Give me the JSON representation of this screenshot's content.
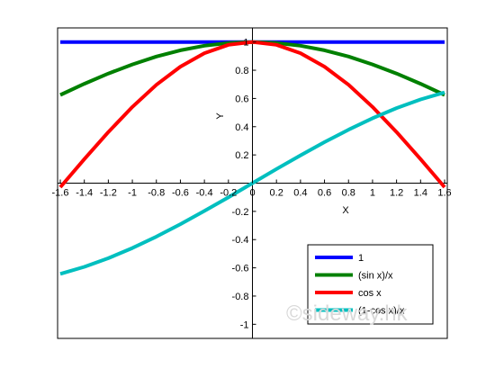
{
  "chart_data": {
    "type": "line",
    "title": "",
    "xlabel": "X",
    "ylabel": "Y",
    "xlim": [
      -1.6,
      1.6
    ],
    "ylim": [
      -1.1,
      1.1
    ],
    "xticks": [
      "-1.6",
      "-1.4",
      "-1.2",
      "-1",
      "-0.8",
      "-0.6",
      "-0.4",
      "-0.2",
      "0",
      "0.2",
      "0.4",
      "0.6",
      "0.8",
      "1",
      "1.2",
      "1.4",
      "1.6"
    ],
    "yticks": [
      "-1",
      "-0.8",
      "-0.6",
      "-0.4",
      "-0.2",
      "0.2",
      "0.4",
      "0.6",
      "0.8",
      "1"
    ],
    "yticks_values": [
      -1,
      -0.8,
      -0.6,
      -0.4,
      -0.2,
      0.2,
      0.4,
      0.6,
      0.8,
      1
    ],
    "x": [
      -1.6,
      -1.4,
      -1.2,
      -1,
      -0.8,
      -0.6,
      -0.4,
      -0.2,
      0,
      0.2,
      0.4,
      0.6,
      0.8,
      1,
      1.2,
      1.4,
      1.6
    ],
    "series": [
      {
        "name": "1",
        "color": "#0000ff",
        "values": [
          1,
          1,
          1,
          1,
          1,
          1,
          1,
          1,
          1,
          1,
          1,
          1,
          1,
          1,
          1,
          1,
          1
        ]
      },
      {
        "name": "(sin x)/x",
        "color": "#008000",
        "values": [
          0.625,
          0.704,
          0.777,
          0.841,
          0.897,
          0.941,
          0.974,
          0.993,
          1,
          0.993,
          0.974,
          0.941,
          0.897,
          0.841,
          0.777,
          0.704,
          0.625
        ]
      },
      {
        "name": "cos x",
        "color": "#ff0000",
        "values": [
          -0.029,
          0.17,
          0.362,
          0.54,
          0.697,
          0.825,
          0.921,
          0.98,
          1,
          0.98,
          0.921,
          0.825,
          0.697,
          0.54,
          0.362,
          0.17,
          -0.029
        ]
      },
      {
        "name": "(1-cos x)/x",
        "color": "#00bfbf",
        "values": [
          -0.643,
          -0.593,
          -0.532,
          -0.46,
          -0.379,
          -0.291,
          -0.197,
          -0.1,
          0,
          0.1,
          0.197,
          0.291,
          0.379,
          0.46,
          0.532,
          0.593,
          0.643
        ]
      }
    ],
    "legend_position": "bottom-right",
    "grid": false
  },
  "watermark": "©sideway.hk"
}
